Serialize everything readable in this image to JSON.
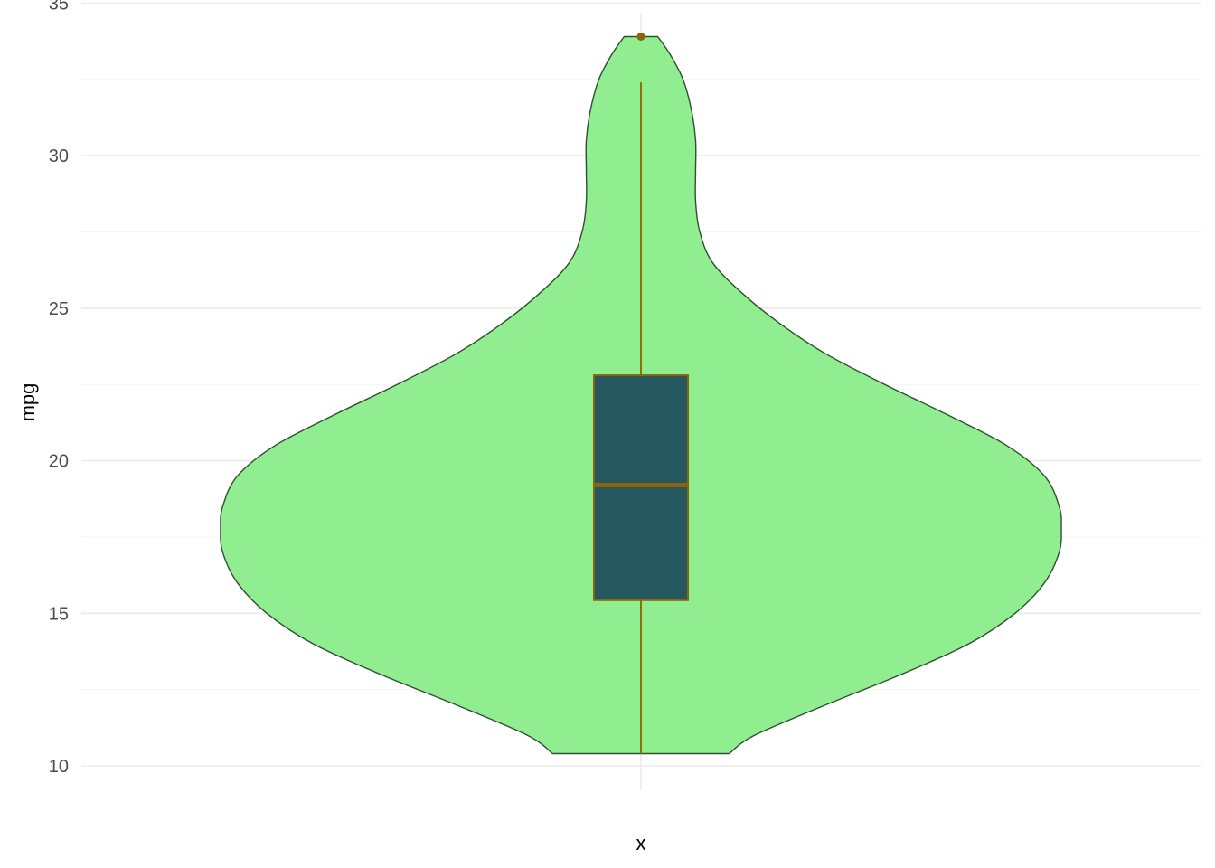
{
  "chart_data": {
    "type": "violin",
    "xlabel": "x",
    "ylabel": "mpg",
    "ylim": [
      9.2,
      35.1
    ],
    "y_ticks": [
      10,
      15,
      20,
      25,
      30,
      35
    ],
    "y_tick_labels": [
      "10",
      "15",
      "20",
      "25",
      "30",
      "35"
    ],
    "grid": true,
    "legend": "none",
    "density": [
      {
        "y": 10.4,
        "w": 0.21
      },
      {
        "y": 11.0,
        "w": 0.27
      },
      {
        "y": 12.0,
        "w": 0.44
      },
      {
        "y": 13.0,
        "w": 0.62
      },
      {
        "y": 14.0,
        "w": 0.78
      },
      {
        "y": 15.0,
        "w": 0.89
      },
      {
        "y": 16.0,
        "w": 0.96
      },
      {
        "y": 17.0,
        "w": 0.995
      },
      {
        "y": 17.8,
        "w": 1.0
      },
      {
        "y": 18.5,
        "w": 0.995
      },
      {
        "y": 19.5,
        "w": 0.96
      },
      {
        "y": 20.5,
        "w": 0.87
      },
      {
        "y": 21.5,
        "w": 0.73
      },
      {
        "y": 22.5,
        "w": 0.58
      },
      {
        "y": 23.5,
        "w": 0.44
      },
      {
        "y": 24.5,
        "w": 0.33
      },
      {
        "y": 25.5,
        "w": 0.24
      },
      {
        "y": 26.5,
        "w": 0.17
      },
      {
        "y": 27.5,
        "w": 0.14
      },
      {
        "y": 28.5,
        "w": 0.13
      },
      {
        "y": 29.5,
        "w": 0.13
      },
      {
        "y": 30.5,
        "w": 0.13
      },
      {
        "y": 31.5,
        "w": 0.12
      },
      {
        "y": 32.5,
        "w": 0.1
      },
      {
        "y": 33.3,
        "w": 0.07
      },
      {
        "y": 33.9,
        "w": 0.04
      }
    ],
    "boxplot": {
      "min": 10.4,
      "q1": 15.43,
      "median": 19.2,
      "q3": 22.8,
      "max": 32.4,
      "outliers": [
        33.9
      ]
    },
    "colors": {
      "violin_fill": "#90ee90",
      "violin_stroke": "#2f4f2f",
      "box_fill": "#25575e",
      "box_stroke": "#8b6508",
      "whisker": "#8b7500",
      "outlier": "#8b6508"
    }
  }
}
